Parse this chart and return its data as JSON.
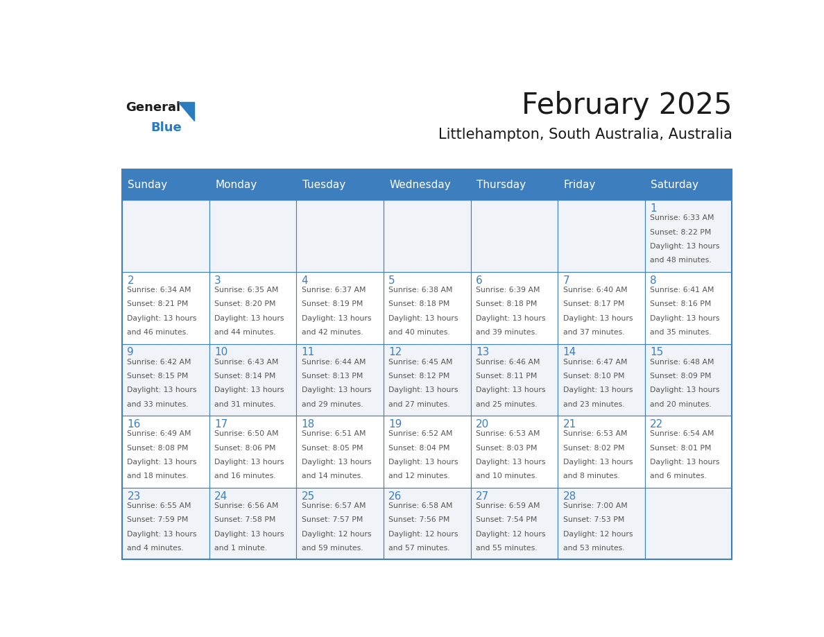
{
  "title": "February 2025",
  "subtitle": "Littlehampton, South Australia, Australia",
  "days_of_week": [
    "Sunday",
    "Monday",
    "Tuesday",
    "Wednesday",
    "Thursday",
    "Friday",
    "Saturday"
  ],
  "header_bg": "#3d7ebf",
  "header_text": "#ffffff",
  "cell_bg_even": "#f0f4f8",
  "cell_bg_odd": "#ffffff",
  "border_color": "#3d7ebf",
  "day_num_color": "#3d7ebf",
  "text_color": "#555555",
  "title_color": "#1a1a1a",
  "subtitle_color": "#1a1a1a",
  "logo_general_color": "#1a1a1a",
  "logo_blue_color": "#2b7bbf",
  "weeks": [
    [
      {
        "day": null,
        "info": null
      },
      {
        "day": null,
        "info": null
      },
      {
        "day": null,
        "info": null
      },
      {
        "day": null,
        "info": null
      },
      {
        "day": null,
        "info": null
      },
      {
        "day": null,
        "info": null
      },
      {
        "day": 1,
        "info": "Sunrise: 6:33 AM\nSunset: 8:22 PM\nDaylight: 13 hours\nand 48 minutes."
      }
    ],
    [
      {
        "day": 2,
        "info": "Sunrise: 6:34 AM\nSunset: 8:21 PM\nDaylight: 13 hours\nand 46 minutes."
      },
      {
        "day": 3,
        "info": "Sunrise: 6:35 AM\nSunset: 8:20 PM\nDaylight: 13 hours\nand 44 minutes."
      },
      {
        "day": 4,
        "info": "Sunrise: 6:37 AM\nSunset: 8:19 PM\nDaylight: 13 hours\nand 42 minutes."
      },
      {
        "day": 5,
        "info": "Sunrise: 6:38 AM\nSunset: 8:18 PM\nDaylight: 13 hours\nand 40 minutes."
      },
      {
        "day": 6,
        "info": "Sunrise: 6:39 AM\nSunset: 8:18 PM\nDaylight: 13 hours\nand 39 minutes."
      },
      {
        "day": 7,
        "info": "Sunrise: 6:40 AM\nSunset: 8:17 PM\nDaylight: 13 hours\nand 37 minutes."
      },
      {
        "day": 8,
        "info": "Sunrise: 6:41 AM\nSunset: 8:16 PM\nDaylight: 13 hours\nand 35 minutes."
      }
    ],
    [
      {
        "day": 9,
        "info": "Sunrise: 6:42 AM\nSunset: 8:15 PM\nDaylight: 13 hours\nand 33 minutes."
      },
      {
        "day": 10,
        "info": "Sunrise: 6:43 AM\nSunset: 8:14 PM\nDaylight: 13 hours\nand 31 minutes."
      },
      {
        "day": 11,
        "info": "Sunrise: 6:44 AM\nSunset: 8:13 PM\nDaylight: 13 hours\nand 29 minutes."
      },
      {
        "day": 12,
        "info": "Sunrise: 6:45 AM\nSunset: 8:12 PM\nDaylight: 13 hours\nand 27 minutes."
      },
      {
        "day": 13,
        "info": "Sunrise: 6:46 AM\nSunset: 8:11 PM\nDaylight: 13 hours\nand 25 minutes."
      },
      {
        "day": 14,
        "info": "Sunrise: 6:47 AM\nSunset: 8:10 PM\nDaylight: 13 hours\nand 23 minutes."
      },
      {
        "day": 15,
        "info": "Sunrise: 6:48 AM\nSunset: 8:09 PM\nDaylight: 13 hours\nand 20 minutes."
      }
    ],
    [
      {
        "day": 16,
        "info": "Sunrise: 6:49 AM\nSunset: 8:08 PM\nDaylight: 13 hours\nand 18 minutes."
      },
      {
        "day": 17,
        "info": "Sunrise: 6:50 AM\nSunset: 8:06 PM\nDaylight: 13 hours\nand 16 minutes."
      },
      {
        "day": 18,
        "info": "Sunrise: 6:51 AM\nSunset: 8:05 PM\nDaylight: 13 hours\nand 14 minutes."
      },
      {
        "day": 19,
        "info": "Sunrise: 6:52 AM\nSunset: 8:04 PM\nDaylight: 13 hours\nand 12 minutes."
      },
      {
        "day": 20,
        "info": "Sunrise: 6:53 AM\nSunset: 8:03 PM\nDaylight: 13 hours\nand 10 minutes."
      },
      {
        "day": 21,
        "info": "Sunrise: 6:53 AM\nSunset: 8:02 PM\nDaylight: 13 hours\nand 8 minutes."
      },
      {
        "day": 22,
        "info": "Sunrise: 6:54 AM\nSunset: 8:01 PM\nDaylight: 13 hours\nand 6 minutes."
      }
    ],
    [
      {
        "day": 23,
        "info": "Sunrise: 6:55 AM\nSunset: 7:59 PM\nDaylight: 13 hours\nand 4 minutes."
      },
      {
        "day": 24,
        "info": "Sunrise: 6:56 AM\nSunset: 7:58 PM\nDaylight: 13 hours\nand 1 minute."
      },
      {
        "day": 25,
        "info": "Sunrise: 6:57 AM\nSunset: 7:57 PM\nDaylight: 12 hours\nand 59 minutes."
      },
      {
        "day": 26,
        "info": "Sunrise: 6:58 AM\nSunset: 7:56 PM\nDaylight: 12 hours\nand 57 minutes."
      },
      {
        "day": 27,
        "info": "Sunrise: 6:59 AM\nSunset: 7:54 PM\nDaylight: 12 hours\nand 55 minutes."
      },
      {
        "day": 28,
        "info": "Sunrise: 7:00 AM\nSunset: 7:53 PM\nDaylight: 12 hours\nand 53 minutes."
      },
      {
        "day": null,
        "info": null
      }
    ]
  ]
}
